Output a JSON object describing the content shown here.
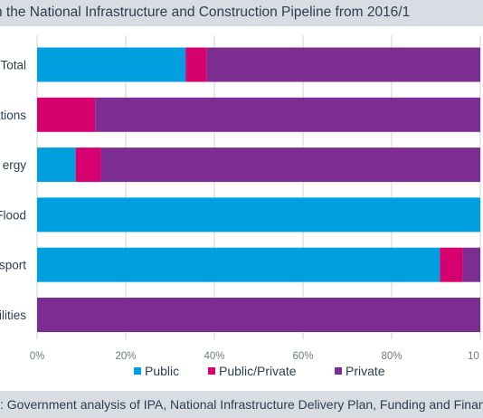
{
  "header": {
    "title": "n the National Infrastructure and Construction Pipeline from 2016/1"
  },
  "footer": {
    "source": ": Government analysis of IPA, National Infrastructure Delivery Plan, Funding and Finance"
  },
  "chart_data": {
    "type": "bar",
    "orientation": "horizontal",
    "stacked": true,
    "categories": [
      "Total",
      "ations",
      "ergy",
      "Flood",
      "sport",
      "ilities"
    ],
    "series": [
      {
        "name": "Public",
        "color": "#009fdf",
        "values": [
          33.5,
          0,
          8.7,
          100,
          90.9,
          0
        ]
      },
      {
        "name": "Public/Private",
        "color": "#d6006f",
        "values": [
          4.8,
          13.1,
          5.7,
          0,
          5.1,
          0
        ]
      },
      {
        "name": "Private",
        "color": "#7d2c92",
        "values": [
          61.7,
          86.9,
          85.6,
          0,
          4.0,
          100
        ]
      }
    ],
    "x_ticks": [
      "0%",
      "20%",
      "40%",
      "60%",
      "80%",
      "10"
    ],
    "xlim": [
      0,
      100
    ],
    "grid": "vertical",
    "legend_position": "bottom"
  }
}
